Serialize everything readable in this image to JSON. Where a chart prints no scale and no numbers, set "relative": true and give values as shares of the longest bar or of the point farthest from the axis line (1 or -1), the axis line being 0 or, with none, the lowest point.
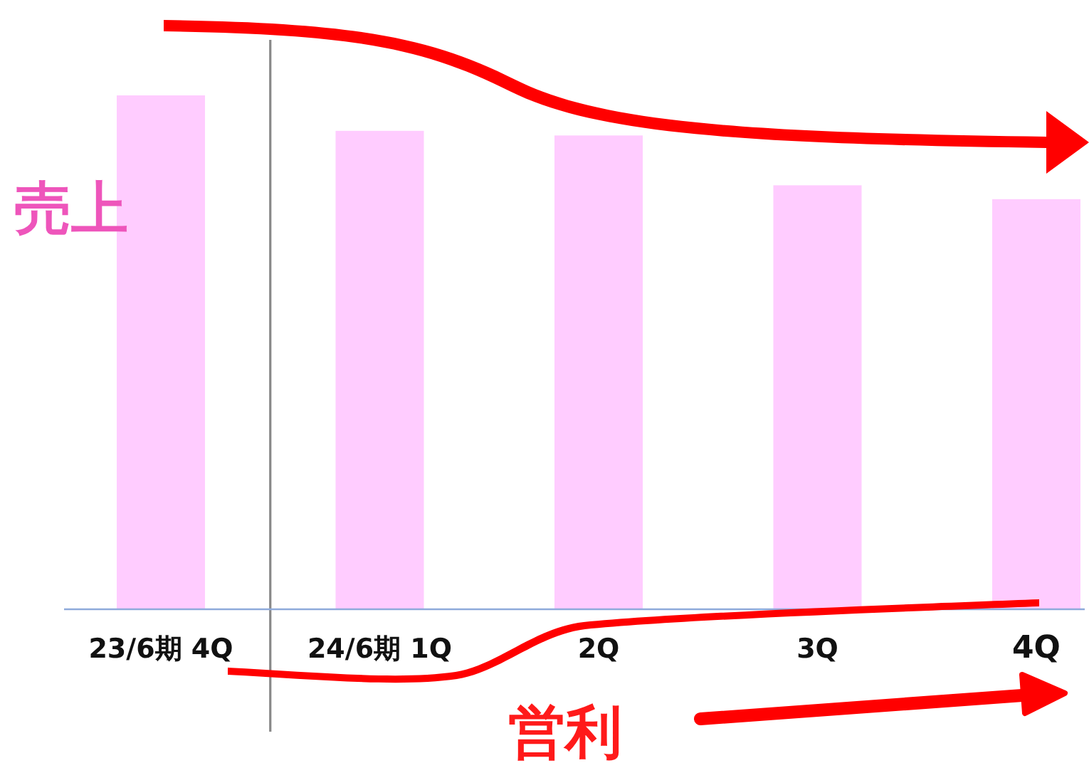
{
  "chart_data": {
    "type": "bar",
    "relative": true,
    "categories": [
      "23/6期 4Q",
      "24/6期 1Q",
      "2Q",
      "3Q",
      "4Q"
    ],
    "values": [
      1,
      0.931,
      0.922,
      0.825,
      0.798
    ],
    "color": "#ffccff",
    "annotations": [
      "売上",
      "営利"
    ]
  }
}
